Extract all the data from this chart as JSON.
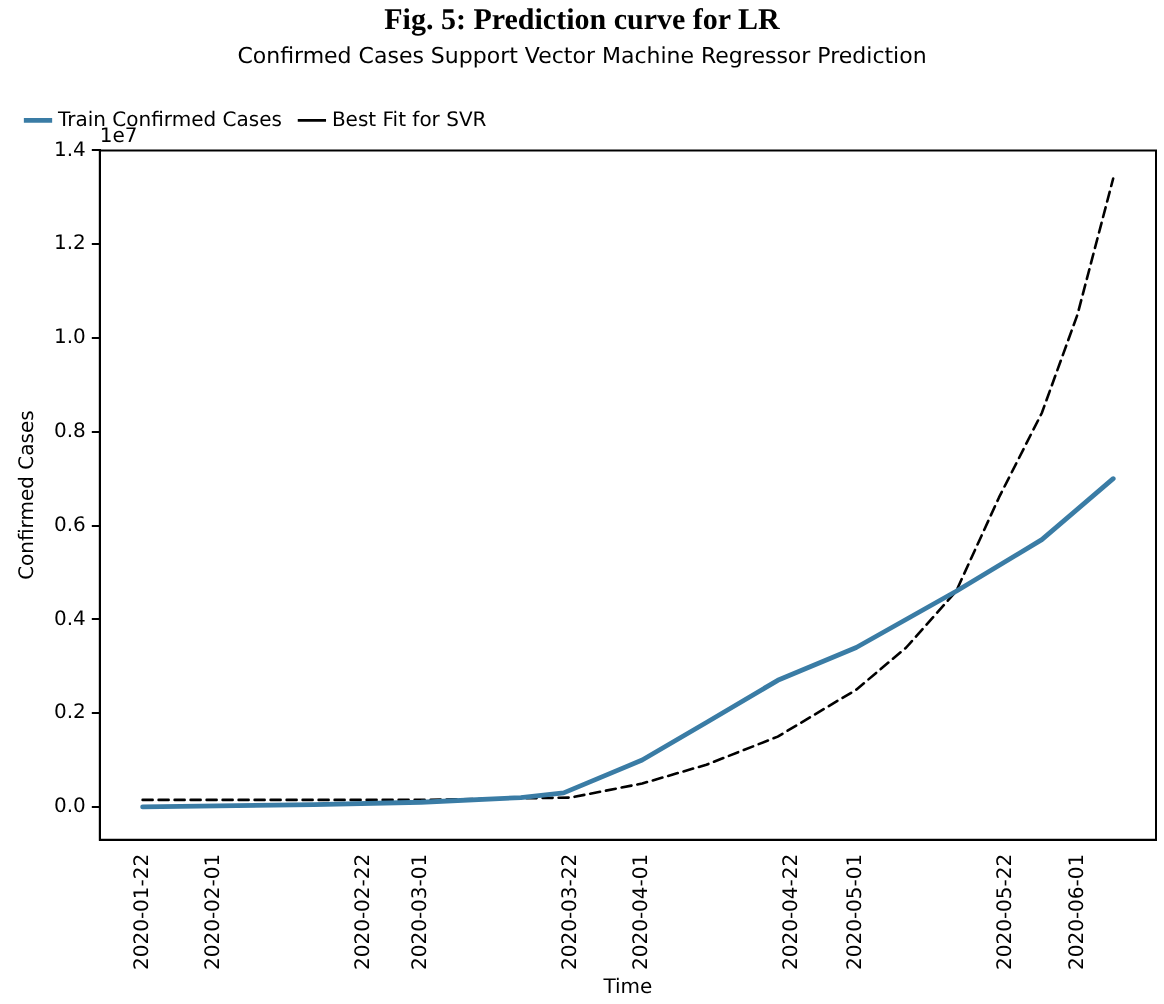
{
  "chart_data": {
    "type": "line",
    "title": "Confirmed Cases Support Vector Machine Regressor Prediction",
    "xlabel": "Time",
    "ylabel": "Confirmed Cases",
    "annotations": [
      "Fig. 5: Prediction curve for LR",
      "1e7"
    ],
    "legend": "top left",
    "grid": false,
    "xlim": [
      "2020-01-16",
      "2020-06-12"
    ],
    "xticks": [
      "2020-01-22",
      "2020-02-01",
      "2020-02-22",
      "2020-03-01",
      "2020-03-22",
      "2020-04-01",
      "2020-04-22",
      "2020-05-01",
      "2020-05-22",
      "2020-06-01"
    ],
    "ylim": [
      -0.07,
      1.4
    ],
    "yticks": [
      {
        "value": 0,
        "label": "0.0"
      },
      {
        "value": 0.2,
        "label": "0.2"
      },
      {
        "value": 0.4,
        "label": "0.4"
      },
      {
        "value": 0.6,
        "label": "0.6"
      },
      {
        "value": 0.8,
        "label": "0.8"
      },
      {
        "value": 1.0,
        "label": "1.0"
      },
      {
        "value": 1.2,
        "label": "1.2"
      },
      {
        "value": 1.4,
        "label": "1.4"
      }
    ],
    "series": [
      {
        "name": "Train Confirmed Cases",
        "color": "#3a7ca5",
        "line_style": "solid",
        "x": [
          "2020-01-22",
          "2020-02-15",
          "2020-03-01",
          "2020-03-15",
          "2020-03-21",
          "2020-04-01",
          "2020-04-10",
          "2020-04-20",
          "2020-05-01",
          "2020-05-15",
          "2020-05-27",
          "2020-06-06"
        ],
        "values": [
          0.0,
          0.005,
          0.01,
          0.02,
          0.03,
          0.1,
          0.18,
          0.27,
          0.34,
          0.46,
          0.57,
          0.7
        ]
      },
      {
        "name": "Best Fit for SVR",
        "color": "#000000",
        "line_style": "dashed",
        "x": [
          "2020-01-22",
          "2020-02-15",
          "2020-03-01",
          "2020-03-22",
          "2020-04-01",
          "2020-04-10",
          "2020-04-20",
          "2020-05-01",
          "2020-05-08",
          "2020-05-15",
          "2020-05-21",
          "2020-05-27",
          "2020-06-01",
          "2020-06-06"
        ],
        "values": [
          0.015,
          0.015,
          0.015,
          0.02,
          0.05,
          0.09,
          0.15,
          0.25,
          0.34,
          0.46,
          0.66,
          0.84,
          1.05,
          1.34
        ]
      }
    ]
  }
}
